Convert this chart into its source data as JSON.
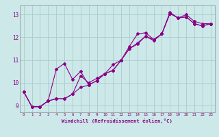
{
  "xlabel": "Windchill (Refroidissement éolien,°C)",
  "bg_color": "#cce8e8",
  "grid_color": "#aacccc",
  "line_color": "#880088",
  "xlim_min": -0.5,
  "xlim_max": 23.5,
  "ylim_min": 8.7,
  "ylim_max": 13.4,
  "yticks": [
    9,
    10,
    11,
    12,
    13
  ],
  "xticks": [
    0,
    1,
    2,
    3,
    4,
    5,
    6,
    7,
    8,
    9,
    10,
    11,
    12,
    13,
    14,
    15,
    16,
    17,
    18,
    19,
    20,
    21,
    22,
    23
  ],
  "series1_x": [
    0,
    1,
    2,
    3,
    4,
    5,
    6,
    7,
    8,
    9,
    10,
    11,
    12,
    13,
    14,
    15,
    16,
    17,
    18,
    19,
    20,
    21,
    22,
    23
  ],
  "series1_y": [
    9.6,
    8.95,
    8.95,
    9.2,
    10.6,
    10.85,
    10.15,
    10.5,
    9.9,
    10.1,
    10.4,
    10.55,
    11.0,
    11.6,
    12.15,
    12.2,
    11.9,
    12.15,
    13.1,
    12.85,
    13.0,
    12.7,
    12.6,
    12.6
  ],
  "series2_x": [
    0,
    1,
    2,
    3,
    4,
    5,
    6,
    7,
    8,
    9,
    10,
    11,
    12,
    13,
    14,
    15,
    16,
    17,
    18,
    19,
    20,
    21,
    22,
    23
  ],
  "series2_y": [
    9.6,
    8.95,
    8.95,
    9.2,
    9.3,
    9.3,
    9.5,
    10.3,
    10.0,
    10.2,
    10.4,
    10.8,
    11.0,
    11.5,
    11.75,
    12.05,
    11.85,
    12.15,
    13.05,
    12.85,
    12.9,
    12.6,
    12.5,
    12.6
  ],
  "series3_x": [
    0,
    1,
    2,
    3,
    4,
    5,
    6,
    7,
    8,
    9,
    10,
    11,
    12,
    13,
    14,
    15,
    16,
    17,
    18,
    19,
    20,
    21,
    22,
    23
  ],
  "series3_y": [
    9.6,
    8.95,
    8.95,
    9.2,
    9.3,
    9.3,
    9.5,
    9.8,
    9.9,
    10.1,
    10.4,
    10.55,
    11.0,
    11.5,
    11.7,
    12.05,
    11.9,
    12.15,
    13.05,
    12.85,
    12.9,
    12.6,
    12.5,
    12.6
  ]
}
